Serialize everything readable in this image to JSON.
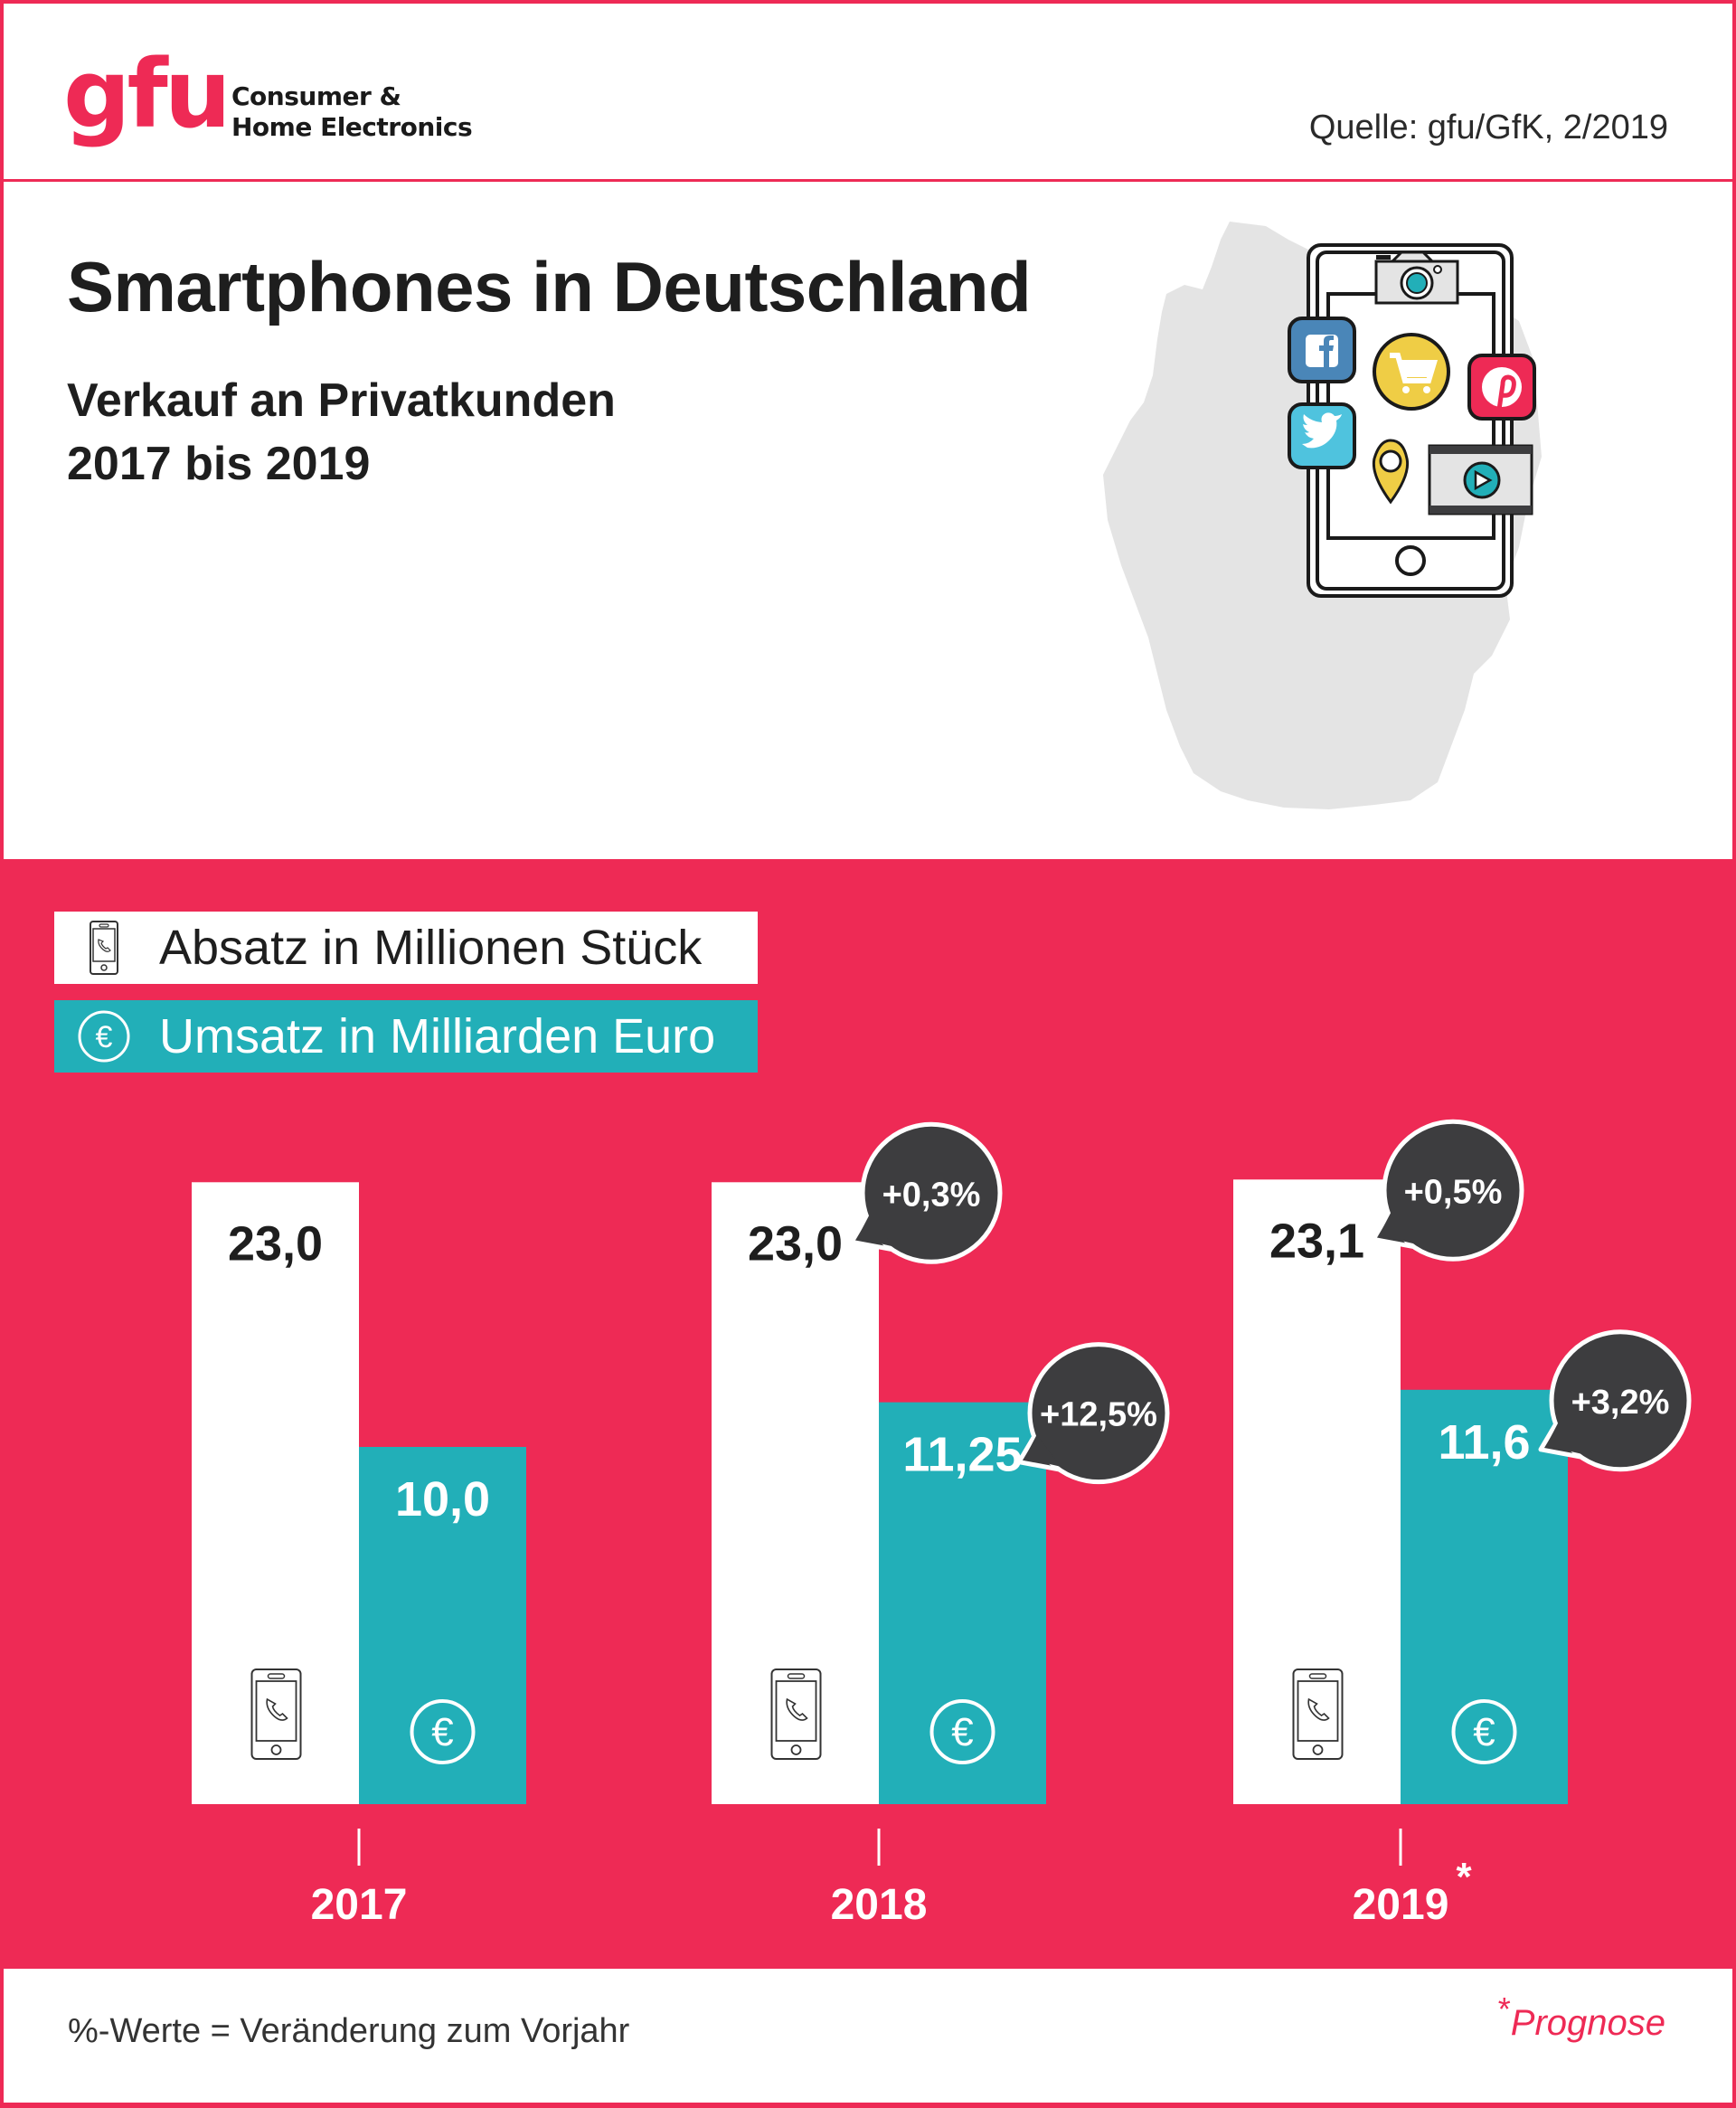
{
  "header": {
    "logo_text": "gfu",
    "logo_sub_line1": "Consumer &",
    "logo_sub_line2": "Home Electronics",
    "source": "Quelle: gfu/GfK, 2/2019"
  },
  "title": "Smartphones in Deutschland",
  "subtitle_line1": "Verkauf an Privatkunden",
  "subtitle_line2": "2017 bis 2019",
  "illustration": {
    "icons": [
      "germany-map",
      "smartphone",
      "camera-icon",
      "facebook-icon",
      "twitter-icon",
      "shopping-cart-icon",
      "pinterest-icon",
      "location-pin-icon",
      "video-play-icon"
    ]
  },
  "legend": {
    "units_label": "Absatz in Millionen Stück",
    "revenue_label": "Umsatz in Milliarden Euro",
    "units_icon": "smartphone-icon",
    "revenue_icon": "euro-icon"
  },
  "colors": {
    "brand_pink": "#EE2A55",
    "teal": "#22AFB8",
    "bubble": "#3D3D3F",
    "text_dark": "#1E1E1E"
  },
  "chart_data": {
    "type": "bar",
    "title": "Smartphones in Deutschland – Verkauf an Privatkunden 2017 bis 2019",
    "categories": [
      "2017",
      "2018",
      "2019*"
    ],
    "series": [
      {
        "name": "Absatz in Millionen Stück",
        "values": [
          23.0,
          23.0,
          23.1
        ],
        "labels": [
          "23,0",
          "23,0",
          "23,1"
        ],
        "change_labels": [
          null,
          "+0,3%",
          "+0,5%"
        ],
        "color": "#FFFFFF"
      },
      {
        "name": "Umsatz in Milliarden Euro",
        "values": [
          10.0,
          11.25,
          11.6
        ],
        "labels": [
          "10,0",
          "11,25",
          "11,6"
        ],
        "change_labels": [
          null,
          "+12,5%",
          "+3,2%"
        ],
        "color": "#22AFB8"
      }
    ],
    "xlabel": "",
    "ylabel": "",
    "grid": false,
    "legend_position": "top-left"
  },
  "footer": {
    "note": "%-Werte = Veränderung zum Vorjahr",
    "prognose_star": "*",
    "prognose": "Prognose"
  }
}
